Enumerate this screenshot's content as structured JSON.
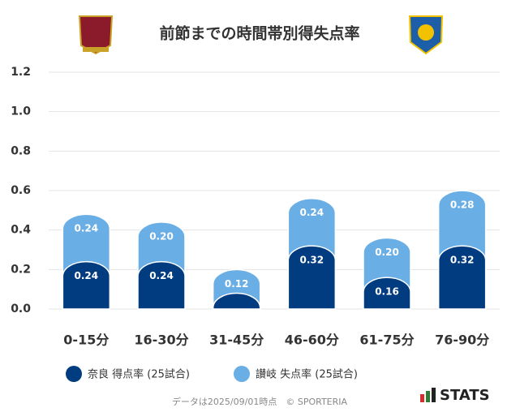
{
  "chart_data": {
    "type": "stacked_bar",
    "title": "前節までの時間帯別得失点率",
    "categories": [
      "0-15分",
      "16-30分",
      "31-45分",
      "46-60分",
      "61-75分",
      "76-90分"
    ],
    "series": [
      {
        "name": "奈良 得点率 (25試合)",
        "color": "#023c80",
        "values": [
          0.24,
          0.24,
          0.08,
          0.32,
          0.16,
          0.32
        ],
        "value_labels": [
          "0.24",
          "0.24",
          null,
          "0.32",
          "0.16",
          "0.32"
        ]
      },
      {
        "name": "讃岐 失点率 (25試合)",
        "color": "#6aaee6",
        "values": [
          0.24,
          0.2,
          0.12,
          0.24,
          0.2,
          0.28
        ],
        "value_labels": [
          "0.24",
          "0.20",
          "0.12",
          "0.24",
          "0.20",
          "0.28"
        ]
      }
    ],
    "ylim": [
      0,
      1.2
    ],
    "yticks": [
      {
        "value": 0,
        "label": "0.0"
      },
      0.2,
      0.4,
      0.6,
      0.8,
      {
        "value": 1,
        "label": "1.0"
      },
      1.2
    ],
    "grid": true,
    "source": "データは2025/09/01時点　© SPORTERIA",
    "brand": "STATS"
  }
}
